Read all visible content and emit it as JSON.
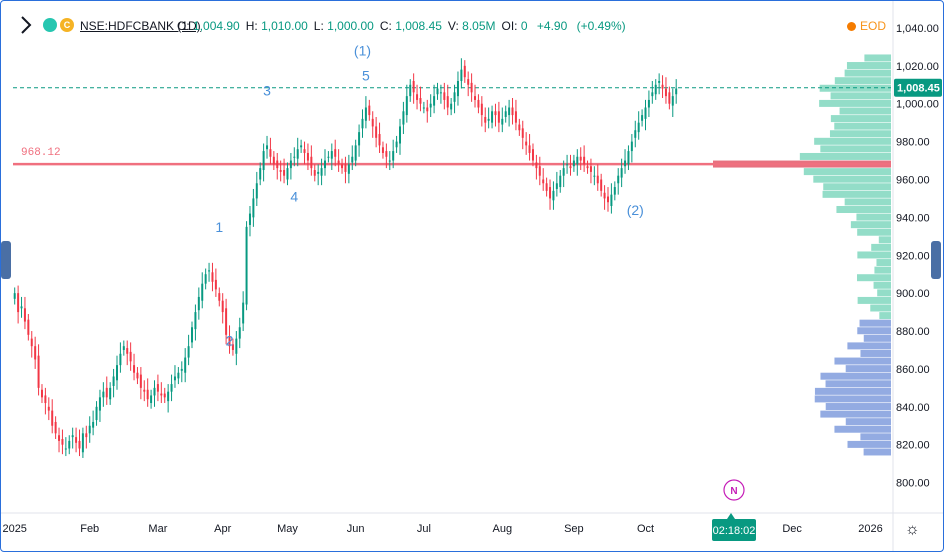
{
  "header": {
    "symbol": "NSE:HDFCBANK (1D)",
    "ohlc": [
      {
        "k": "O:",
        "v": "1,004.90"
      },
      {
        "k": "H:",
        "v": "1,010.00"
      },
      {
        "k": "L:",
        "v": "1,000.00"
      },
      {
        "k": "C:",
        "v": "1,008.45"
      },
      {
        "k": "V:",
        "v": "8.05M"
      },
      {
        "k": "OI:",
        "v": "0"
      }
    ],
    "change": "+4.90",
    "change_pct": "(+0.49%)",
    "eod_label": "EOD",
    "logo_letter": "C"
  },
  "countdown": "02:18:02",
  "news_badge": "N",
  "colors": {
    "up": "#089981",
    "down": "#f23645",
    "level": "#f0707f",
    "current": "#089981",
    "wave": "#4a90d9",
    "vp_upper": "#6fd2b6",
    "vp_lower": "#6f8fd8",
    "vp_poc": "#e8707f"
  },
  "chart_data": {
    "type": "candlestick",
    "ylim": [
      785,
      1050
    ],
    "y_ticks": [
      800,
      820,
      840,
      860,
      880,
      900,
      920,
      940,
      960,
      980,
      1000,
      1020,
      1040
    ],
    "y_tick_labels": [
      "800.00",
      "820.00",
      "840.00",
      "860.00",
      "880.00",
      "900.00",
      "920.00",
      "940.00",
      "960.00",
      "980.00",
      "1,000.00",
      "1,020.00",
      "1,040.00"
    ],
    "x_ticks": [
      {
        "label": "2025",
        "i": 0
      },
      {
        "label": "Feb",
        "i": 22
      },
      {
        "label": "Mar",
        "i": 42
      },
      {
        "label": "Apr",
        "i": 61
      },
      {
        "label": "May",
        "i": 80
      },
      {
        "label": "Jun",
        "i": 100
      },
      {
        "label": "Jul",
        "i": 120
      },
      {
        "label": "Aug",
        "i": 143
      },
      {
        "label": "Sep",
        "i": 164
      },
      {
        "label": "Oct",
        "i": 185
      },
      {
        "label": "Dec",
        "i": 228
      },
      {
        "label": "2026",
        "i": 251
      }
    ],
    "x_range": [
      -0.5,
      257
    ],
    "horizontal_level": {
      "value": 968.12,
      "label": "968.12"
    },
    "current_price": {
      "value": 1008.45,
      "label": "1,008.45"
    },
    "closes": [
      900,
      890,
      893,
      885,
      878,
      872,
      865,
      850,
      845,
      842,
      838,
      830,
      826,
      822,
      820,
      818,
      822,
      825,
      821,
      818,
      826,
      824,
      830,
      832,
      840,
      845,
      848,
      845,
      850,
      856,
      862,
      868,
      872,
      868,
      864,
      858,
      855,
      850,
      848,
      844,
      846,
      850,
      848,
      846,
      845,
      848,
      852,
      856,
      858,
      860,
      866,
      872,
      882,
      890,
      898,
      905,
      910,
      912,
      906,
      902,
      896,
      890,
      878,
      872,
      870,
      876,
      882,
      895,
      935,
      942,
      950,
      958,
      966,
      975,
      978,
      972,
      968,
      966,
      964,
      962,
      966,
      970,
      972,
      976,
      978,
      974,
      970,
      966,
      962,
      964,
      966,
      970,
      972,
      975,
      972,
      968,
      966,
      964,
      968,
      972,
      978,
      985,
      992,
      998,
      994,
      988,
      982,
      978,
      974,
      972,
      970,
      975,
      980,
      988,
      996,
      1004,
      1010,
      1006,
      1002,
      1000,
      998,
      996,
      1000,
      1004,
      1008,
      1006,
      1002,
      998,
      1000,
      1006,
      1012,
      1018,
      1014,
      1010,
      1006,
      1002,
      998,
      994,
      990,
      992,
      996,
      994,
      990,
      992,
      996,
      998,
      994,
      990,
      986,
      982,
      978,
      974,
      970,
      966,
      962,
      958,
      954,
      950,
      954,
      958,
      962,
      966,
      968,
      966,
      970,
      972,
      970,
      968,
      966,
      964,
      962,
      958,
      954,
      950,
      948,
      952,
      956,
      962,
      966,
      970,
      975,
      980,
      986,
      990,
      994,
      998,
      1002,
      1006,
      1010,
      1012,
      1008,
      1004,
      1000,
      1004,
      1008
    ]
  }
}
